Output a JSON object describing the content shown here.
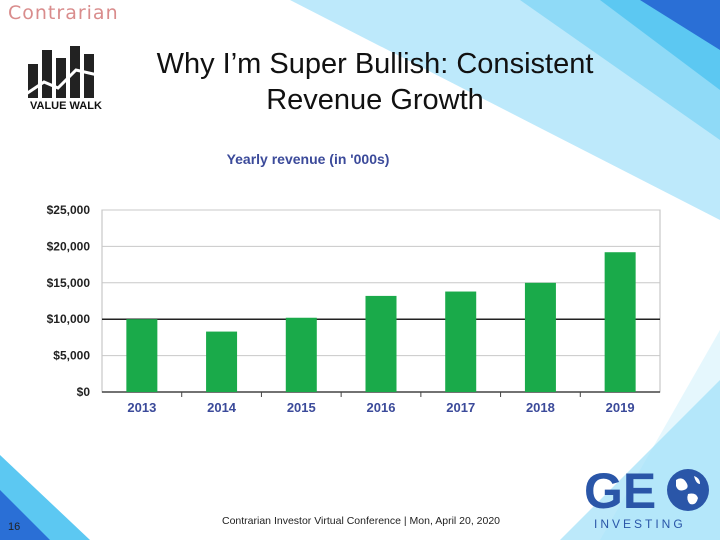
{
  "brand": {
    "top_left": "Contrarian",
    "value_walk": "VALUE WALK",
    "geo_main": "GE",
    "geo_sub": "INVESTING"
  },
  "slide": {
    "title_line1": "Why I’m Super Bullish: Consistent",
    "title_line2": "Revenue Growth",
    "page_number": "16",
    "footer": "Contrarian Investor Virtual Conference | Mon, April 20, 2020"
  },
  "colors": {
    "bar": "#1aaa4a",
    "title_text": "#3b4a9a",
    "accent_blue": "#2a6fd6",
    "accent_sky": "#5cc8f2"
  },
  "chart_data": {
    "type": "bar",
    "title": "Yearly revenue (in '000s)",
    "categories": [
      "2013",
      "2014",
      "2015",
      "2016",
      "2017",
      "2018",
      "2019"
    ],
    "values": [
      10000,
      8300,
      10200,
      13200,
      13800,
      15000,
      19200
    ],
    "ylim": [
      0,
      25000
    ],
    "yticks": [
      0,
      5000,
      10000,
      15000,
      20000,
      25000
    ],
    "ytick_labels": [
      "$0",
      "$5,000",
      "$10,000",
      "$15,000",
      "$20,000",
      "$25,000"
    ],
    "grid": true,
    "legend": "none"
  }
}
